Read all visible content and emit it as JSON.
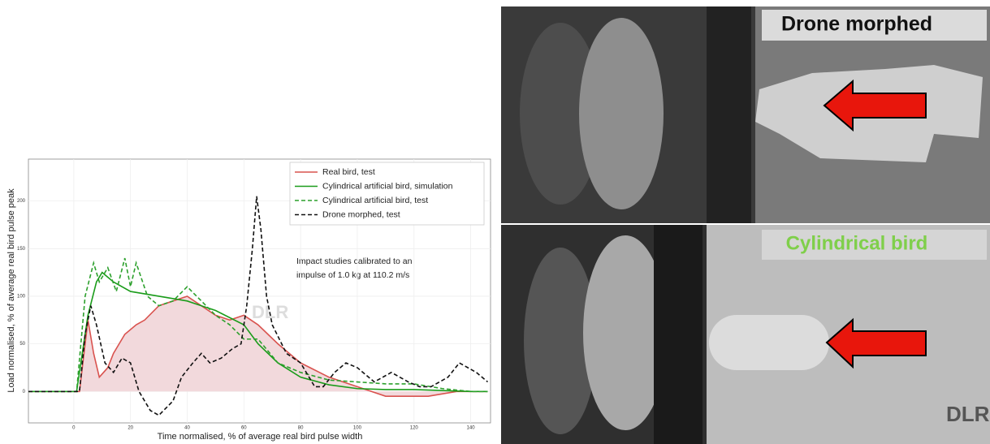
{
  "chart_data": {
    "type": "line",
    "xlabel": "Time normalised, % of average real bird pulse width",
    "ylabel": "Load normalised, % of average real bird pulse peak",
    "annotation": [
      "Impact studies calibrated to an",
      "impulse of 1.0 kg at 110.2 m/s"
    ],
    "watermark": "DLR",
    "xlim": [
      -16,
      147
    ],
    "ylim": [
      -33,
      244
    ],
    "xticks": [
      0,
      20,
      40,
      60,
      80,
      100,
      120,
      140
    ],
    "yticks": [
      0,
      50,
      100,
      150,
      200
    ],
    "grid": true,
    "legend": "upper right",
    "series": [
      {
        "name": "Real bird, test",
        "color": "#d9534f",
        "dash": false,
        "fill": "#f2d9dc",
        "x": [
          -16,
          2,
          4,
          5,
          7,
          9,
          12,
          14,
          18,
          22,
          25,
          30,
          35,
          40,
          45,
          50,
          55,
          60,
          65,
          72,
          80,
          90,
          100,
          110,
          120,
          125,
          135,
          146
        ],
        "values": [
          0,
          0,
          50,
          75,
          40,
          15,
          25,
          40,
          60,
          70,
          75,
          90,
          95,
          100,
          90,
          80,
          75,
          80,
          70,
          50,
          30,
          15,
          5,
          -5,
          -5,
          -5,
          0,
          0
        ]
      },
      {
        "name": "Cylindrical artificial bird, simulation",
        "color": "#1a9c1a",
        "dash": false,
        "x": [
          -16,
          1,
          3,
          5,
          8,
          10,
          14,
          20,
          30,
          40,
          50,
          60,
          65,
          72,
          80,
          90,
          100,
          110,
          120,
          140,
          146
        ],
        "values": [
          0,
          0,
          40,
          80,
          115,
          125,
          115,
          105,
          100,
          95,
          85,
          70,
          50,
          30,
          15,
          7,
          3,
          2,
          2,
          0,
          0
        ]
      },
      {
        "name": "Cylindrical artificial bird, test",
        "color": "#2ca02c",
        "dash": true,
        "x": [
          -16,
          1,
          4,
          7,
          9,
          12,
          15,
          18,
          20,
          22,
          26,
          30,
          35,
          40,
          45,
          50,
          55,
          60,
          65,
          72,
          80,
          90,
          100,
          110,
          120,
          130,
          140,
          146
        ],
        "values": [
          0,
          0,
          100,
          135,
          115,
          130,
          105,
          140,
          110,
          135,
          100,
          90,
          95,
          110,
          95,
          80,
          70,
          55,
          55,
          30,
          20,
          12,
          10,
          8,
          8,
          3,
          0,
          0
        ]
      },
      {
        "name": "Drone morphed, test",
        "color": "#111111",
        "dash": true,
        "x": [
          -16,
          2,
          4,
          6,
          8,
          11,
          14,
          17,
          20,
          23,
          27,
          30,
          35,
          38,
          42,
          45,
          48,
          52,
          56,
          59,
          61,
          63,
          64.5,
          66,
          68,
          70,
          75,
          80,
          85,
          88,
          92,
          96,
          100,
          106,
          112,
          118,
          122,
          126,
          132,
          136,
          142,
          146
        ],
        "values": [
          0,
          0,
          60,
          90,
          70,
          30,
          20,
          35,
          30,
          0,
          -20,
          -25,
          -10,
          15,
          30,
          40,
          30,
          35,
          45,
          50,
          90,
          150,
          205,
          170,
          100,
          70,
          40,
          30,
          5,
          5,
          20,
          30,
          25,
          10,
          20,
          10,
          5,
          5,
          15,
          30,
          20,
          10
        ]
      }
    ]
  },
  "photos": {
    "top_label": "Drone morphed",
    "bottom_label": "Cylindrical bird",
    "watermark": "DLR"
  }
}
